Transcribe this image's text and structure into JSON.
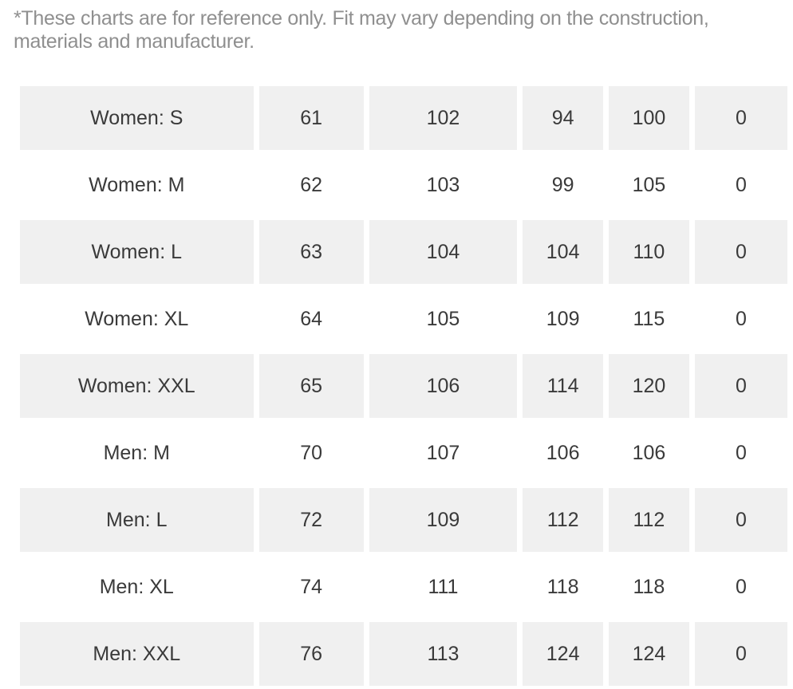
{
  "disclaimer": "*These charts are for reference only. Fit may vary depending on the construction, materials and manufacturer.",
  "size_chart": {
    "rows": [
      [
        "Women: S",
        "61",
        "102",
        "94",
        "100",
        "0"
      ],
      [
        "Women: M",
        "62",
        "103",
        "99",
        "105",
        "0"
      ],
      [
        "Women: L",
        "63",
        "104",
        "104",
        "110",
        "0"
      ],
      [
        "Women: XL",
        "64",
        "105",
        "109",
        "115",
        "0"
      ],
      [
        "Women: XXL",
        "65",
        "106",
        "114",
        "120",
        "0"
      ],
      [
        "Men: M",
        "70",
        "107",
        "106",
        "106",
        "0"
      ],
      [
        "Men: L",
        "72",
        "109",
        "112",
        "112",
        "0"
      ],
      [
        "Men: XL",
        "74",
        "111",
        "118",
        "118",
        "0"
      ],
      [
        "Men: XXL",
        "76",
        "113",
        "124",
        "124",
        "0"
      ]
    ]
  }
}
